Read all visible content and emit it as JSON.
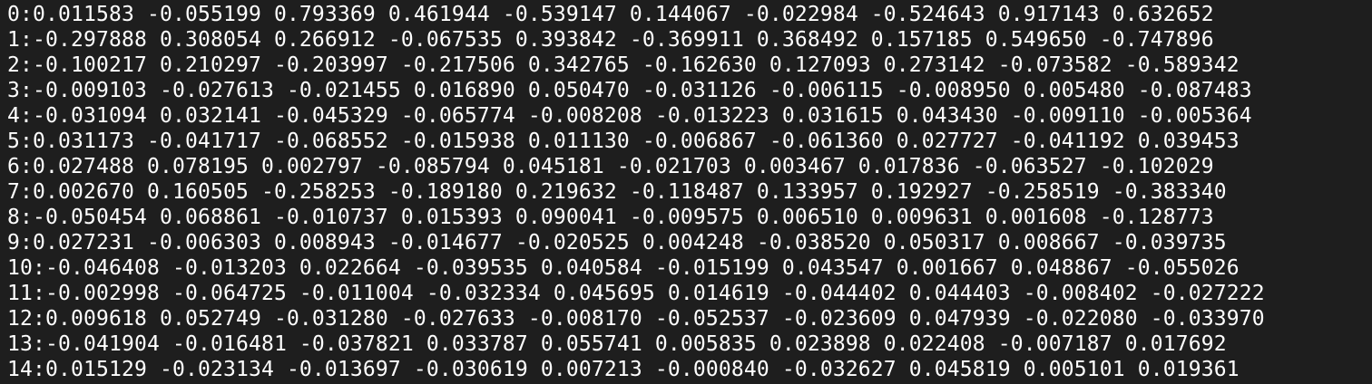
{
  "terminal": {
    "lines": [
      "0:0.011583 -0.055199 0.793369 0.461944 -0.539147 0.144067 -0.022984 -0.524643 0.917143 0.632652",
      "1:-0.297888 0.308054 0.266912 -0.067535 0.393842 -0.369911 0.368492 0.157185 0.549650 -0.747896",
      "2:-0.100217 0.210297 -0.203997 -0.217506 0.342765 -0.162630 0.127093 0.273142 -0.073582 -0.589342",
      "3:-0.009103 -0.027613 -0.021455 0.016890 0.050470 -0.031126 -0.006115 -0.008950 0.005480 -0.087483",
      "4:-0.031094 0.032141 -0.045329 -0.065774 -0.008208 -0.013223 0.031615 0.043430 -0.009110 -0.005364",
      "5:0.031173 -0.041717 -0.068552 -0.015938 0.011130 -0.006867 -0.061360 0.027727 -0.041192 0.039453",
      "6:0.027488 0.078195 0.002797 -0.085794 0.045181 -0.021703 0.003467 0.017836 -0.063527 -0.102029",
      "7:0.002670 0.160505 -0.258253 -0.189180 0.219632 -0.118487 0.133957 0.192927 -0.258519 -0.383340",
      "8:-0.050454 0.068861 -0.010737 0.015393 0.090041 -0.009575 0.006510 0.009631 0.001608 -0.128773",
      "9:0.027231 -0.006303 0.008943 -0.014677 -0.020525 0.004248 -0.038520 0.050317 0.008667 -0.039735",
      "10:-0.046408 -0.013203 0.022664 -0.039535 0.040584 -0.015199 0.043547 0.001667 0.048867 -0.055026",
      "11:-0.002998 -0.064725 -0.011004 -0.032334 0.045695 0.014619 -0.044402 0.044403 -0.008402 -0.027222",
      "12:0.009618 0.052749 -0.031280 -0.027633 -0.008170 -0.052537 -0.023609 0.047939 -0.022080 -0.033970",
      "13:-0.041904 -0.016481 -0.037821 0.033787 0.055741 0.005835 0.023898 0.022408 -0.007187 0.017692",
      "14:0.015129 -0.023134 -0.013697 -0.030619 0.007213 -0.000840 -0.032627 0.045819 0.005101 0.019361"
    ]
  }
}
